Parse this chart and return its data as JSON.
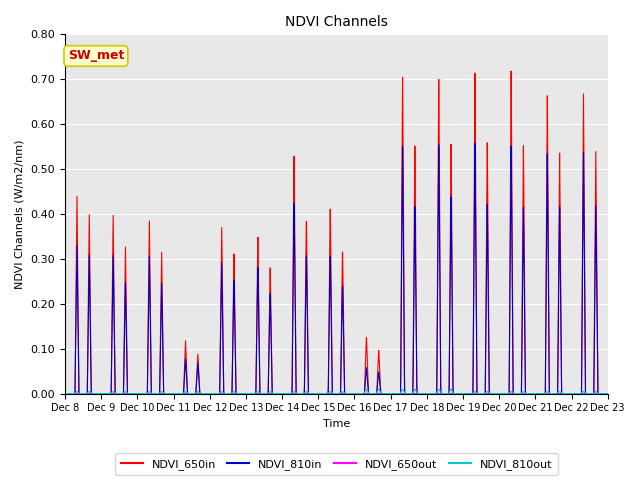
{
  "title": "NDVI Channels",
  "ylabel": "NDVI Channels (W/m2/nm)",
  "xlabel": "Time",
  "ylim": [
    0.0,
    0.8
  ],
  "yticks": [
    0.0,
    0.1,
    0.2,
    0.3,
    0.4,
    0.5,
    0.6,
    0.7,
    0.8
  ],
  "bg_color": "#e8e8e8",
  "annotation_text": "SW_met",
  "annotation_bg": "#ffffcc",
  "annotation_border": "#cccc00",
  "annotation_text_color": "#cc0000",
  "line_colors": {
    "NDVI_650in": "#ff0000",
    "NDVI_810in": "#0000cc",
    "NDVI_650out": "#ff00ff",
    "NDVI_810out": "#00cccc"
  },
  "x_tick_labels": [
    "Dec 8",
    "Dec 9",
    "Dec 10",
    "Dec 11",
    "Dec 12",
    "Dec 13",
    "Dec 14",
    "Dec 15",
    "Dec 16",
    "Dec 17",
    "Dec 18",
    "Dec 19",
    "Dec 20",
    "Dec 21",
    "Dec 22",
    "Dec 23"
  ],
  "peaks_650in_a": [
    0.44,
    0.4,
    0.39,
    0.12,
    0.38,
    0.36,
    0.55,
    0.43,
    0.13,
    0.73,
    0.72,
    0.73,
    0.73,
    0.67,
    0.67
  ],
  "peaks_650in_b": [
    0.4,
    0.33,
    0.32,
    0.09,
    0.32,
    0.29,
    0.4,
    0.33,
    0.1,
    0.57,
    0.57,
    0.57,
    0.56,
    0.54,
    0.54
  ],
  "peaks_810in_a": [
    0.33,
    0.31,
    0.31,
    0.08,
    0.3,
    0.29,
    0.44,
    0.32,
    0.06,
    0.57,
    0.57,
    0.57,
    0.56,
    0.54,
    0.54
  ],
  "peaks_810in_b": [
    0.31,
    0.25,
    0.25,
    0.07,
    0.26,
    0.23,
    0.32,
    0.25,
    0.05,
    0.43,
    0.45,
    0.43,
    0.42,
    0.42,
    0.42
  ],
  "peaks_810out_a": [
    0.005,
    0.005,
    0.005,
    0.005,
    0.005,
    0.005,
    0.005,
    0.005,
    0.01,
    0.01,
    0.01,
    0.005,
    0.005,
    0.005,
    0.005
  ],
  "peaks_810out_b": [
    0.005,
    0.005,
    0.005,
    0.005,
    0.005,
    0.005,
    0.005,
    0.005,
    0.01,
    0.01,
    0.01,
    0.005,
    0.005,
    0.005,
    0.005
  ]
}
